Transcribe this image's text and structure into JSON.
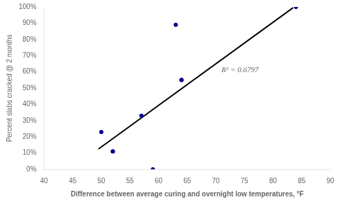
{
  "chart_data": {
    "type": "scatter",
    "xlabel": "Difference between average curing and overnight low temperatures, °F",
    "ylabel": "Percent slabs cracked @ 2 months",
    "series": [
      {
        "type": "scatter",
        "color": "#00008B",
        "x": [
          50,
          52,
          52,
          57,
          59,
          63,
          64,
          64,
          84
        ],
        "values": [
          0.23,
          0.11,
          0.11,
          0.33,
          0.0,
          0.89,
          0.55,
          0.55,
          1.0
        ]
      },
      {
        "type": "line",
        "color": "#000000",
        "x": [
          49.5,
          83.5
        ],
        "values": [
          0.125,
          0.995
        ]
      }
    ],
    "annotations": [
      {
        "text": "R² = 0.6797",
        "x": 71,
        "y": 0.6
      }
    ],
    "xlim": [
      40,
      90
    ],
    "ylim": [
      0,
      1.0
    ],
    "xticks": [
      40,
      45,
      50,
      55,
      60,
      65,
      70,
      75,
      80,
      85,
      90
    ],
    "yticks": [
      {
        "value": 0.0,
        "label": "0%"
      },
      {
        "value": 0.1,
        "label": "10%"
      },
      {
        "value": 0.2,
        "label": "20%"
      },
      {
        "value": 0.3,
        "label": "30%"
      },
      {
        "value": 0.4,
        "label": "40%"
      },
      {
        "value": 0.5,
        "label": "50%"
      },
      {
        "value": 0.6,
        "label": "60%"
      },
      {
        "value": 0.7,
        "label": "70%"
      },
      {
        "value": 0.8,
        "label": "80%"
      },
      {
        "value": 0.9,
        "label": "90%"
      },
      {
        "value": 1.0,
        "label": "100%"
      }
    ],
    "grid": false
  }
}
